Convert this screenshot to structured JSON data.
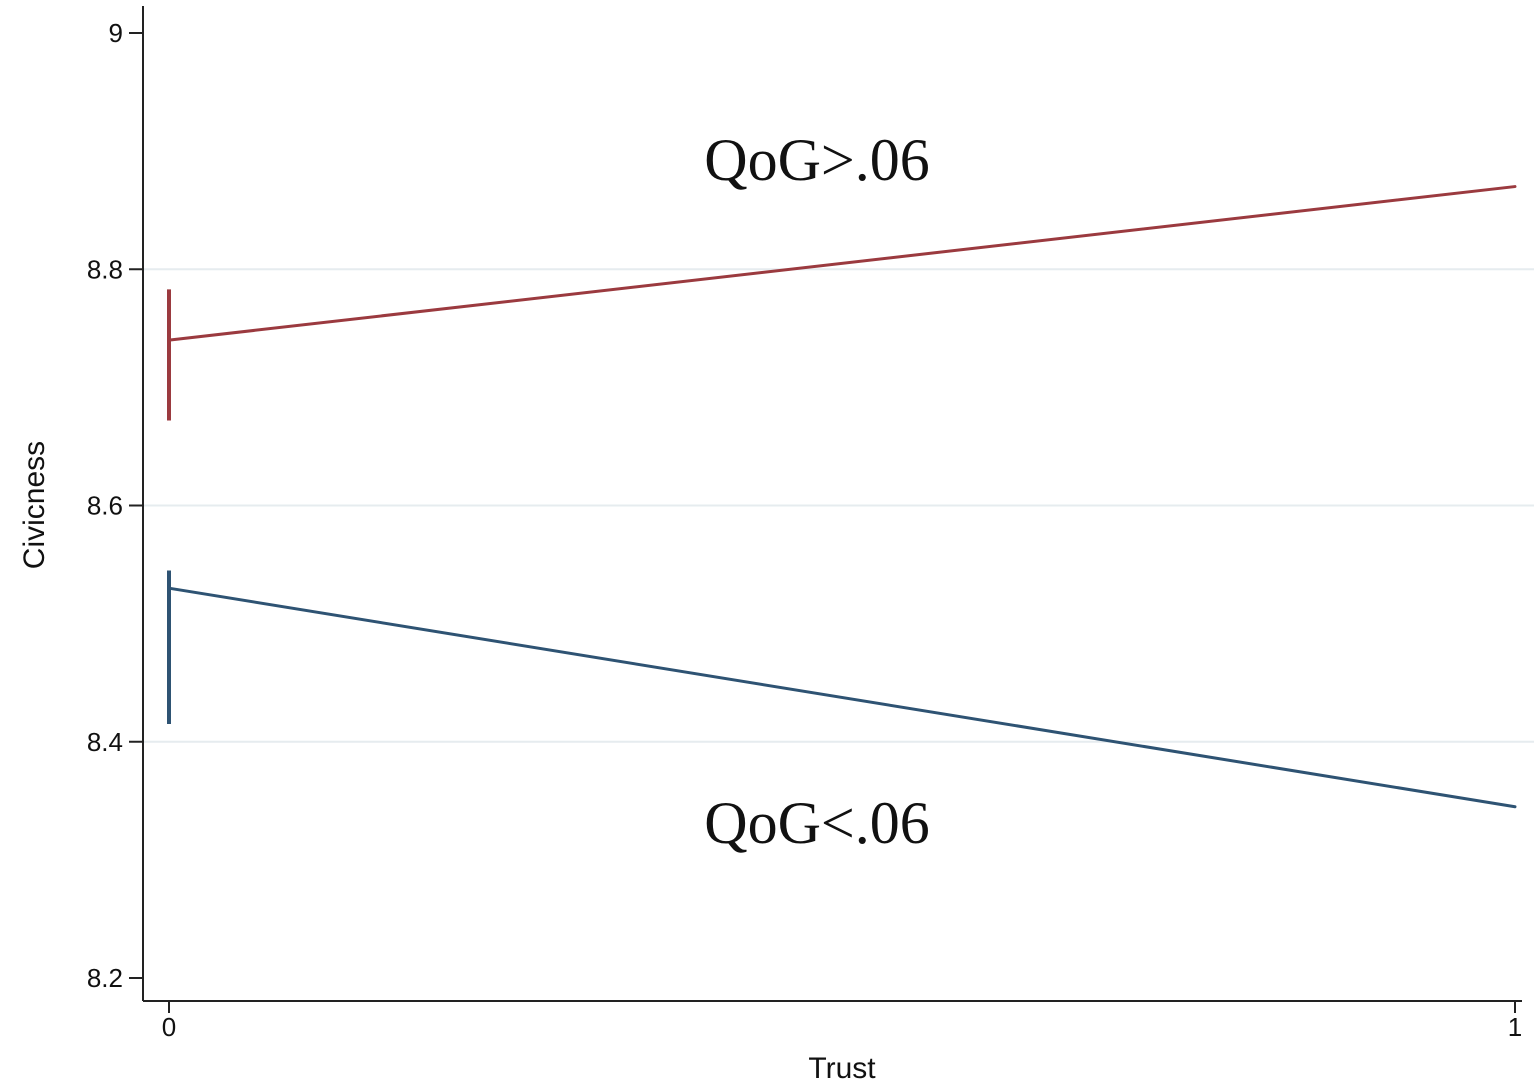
{
  "chart_data": {
    "type": "line",
    "xlabel": "Trust",
    "ylabel": "Civicness",
    "xlim": [
      0,
      1
    ],
    "ylim": [
      8.2,
      9.0
    ],
    "x_ticks": [
      {
        "value": 0,
        "label": "0"
      },
      {
        "value": 1,
        "label": "1"
      }
    ],
    "y_ticks": [
      {
        "value": 8.2,
        "label": "8.2"
      },
      {
        "value": 8.4,
        "label": "8.4"
      },
      {
        "value": 8.6,
        "label": "8.6"
      },
      {
        "value": 8.8,
        "label": "8.8"
      },
      {
        "value": 9.0,
        "label": "9"
      }
    ],
    "grid": true,
    "series": [
      {
        "color": "#9b3a3f",
        "x": [
          0,
          1
        ],
        "y": [
          8.74,
          8.87
        ],
        "ci_at_x0": [
          8.672,
          8.783
        ],
        "annotation": "QoG>.06"
      },
      {
        "color": "#2e5373",
        "x": [
          0,
          1
        ],
        "y": [
          8.53,
          8.345
        ],
        "ci_at_x0": [
          8.415,
          8.545
        ],
        "annotation": "QoG<.06"
      }
    ]
  }
}
